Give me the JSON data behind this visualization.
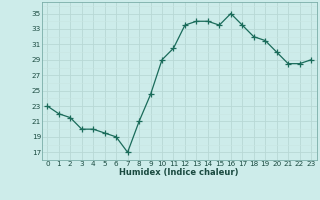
{
  "x": [
    0,
    1,
    2,
    3,
    4,
    5,
    6,
    7,
    8,
    9,
    10,
    11,
    12,
    13,
    14,
    15,
    16,
    17,
    18,
    19,
    20,
    21,
    22,
    23
  ],
  "y": [
    23,
    22,
    21.5,
    20,
    20,
    19.5,
    19,
    17,
    21,
    24.5,
    29,
    30.5,
    33.5,
    34,
    34,
    33.5,
    35,
    33.5,
    32,
    31.5,
    30,
    28.5,
    28.5,
    29
  ],
  "line_color": "#1a6b5a",
  "bg_color": "#cdecea",
  "grid_major_color": "#b8d8d5",
  "grid_minor_color": "#c8e5e2",
  "xlabel": "Humidex (Indice chaleur)",
  "yticks": [
    17,
    19,
    21,
    23,
    25,
    27,
    29,
    31,
    33,
    35
  ],
  "xticks": [
    0,
    1,
    2,
    3,
    4,
    5,
    6,
    7,
    8,
    9,
    10,
    11,
    12,
    13,
    14,
    15,
    16,
    17,
    18,
    19,
    20,
    21,
    22,
    23
  ],
  "xlim": [
    -0.5,
    23.5
  ],
  "ylim": [
    16.0,
    36.5
  ],
  "font_color": "#1a4a40",
  "xlabel_fontsize": 6.0,
  "tick_fontsize": 5.2,
  "linewidth": 0.9,
  "markersize": 2.2
}
